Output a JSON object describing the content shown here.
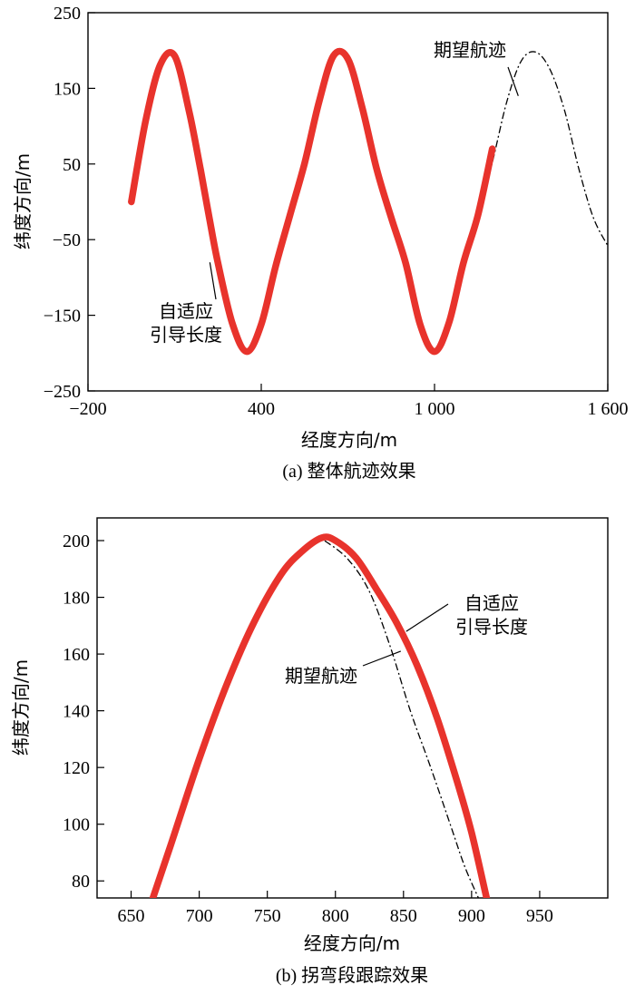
{
  "chart_data": [
    {
      "type": "line",
      "caption": "(a) 整体航迹效果",
      "xlabel": "经度方向/m",
      "ylabel": "纬度方向/m",
      "xlim": [
        -200,
        1600
      ],
      "ylim": [
        -250,
        250
      ],
      "x_ticks": [
        -200,
        400,
        1000,
        1600
      ],
      "x_tick_labels": [
        "−200",
        "400",
        "1 000",
        "1 600"
      ],
      "y_ticks": [
        -250,
        -150,
        -50,
        50,
        150,
        250
      ],
      "y_tick_labels": [
        "−250",
        "−150",
        "−50",
        "50",
        "150",
        "250"
      ],
      "series": [
        {
          "name": "期望航迹",
          "color": "#000000",
          "style": "dash-dot",
          "x": [
            -50,
            0,
            50,
            100,
            150,
            190,
            220,
            250,
            300,
            350,
            400,
            450,
            500,
            550,
            600,
            650,
            700,
            750,
            800,
            850,
            900,
            950,
            1000,
            1050,
            1100,
            1150,
            1200,
            1250,
            1300,
            1350,
            1400,
            1450,
            1500,
            1550,
            1600
          ],
          "y": [
            0,
            108,
            181,
            193,
            120,
            42,
            -21,
            -81,
            -161,
            -198,
            -162,
            -85,
            -17,
            51,
            132,
            193,
            189,
            124,
            43,
            -21,
            -81,
            -162,
            -198,
            -160,
            -81,
            -18,
            52,
            132,
            186,
            198,
            175,
            121,
            43,
            -21,
            -58
          ]
        },
        {
          "name": "自适应引导长度",
          "color": "#e8332c",
          "style": "solid",
          "x": [
            -50,
            0,
            50,
            100,
            150,
            190,
            220,
            250,
            300,
            350,
            400,
            450,
            500,
            550,
            600,
            650,
            700,
            750,
            800,
            850,
            900,
            950,
            1000,
            1050,
            1100,
            1150,
            1200
          ],
          "y": [
            0,
            108,
            181,
            193,
            120,
            42,
            -21,
            -81,
            -161,
            -198,
            -162,
            -85,
            -17,
            51,
            132,
            193,
            189,
            124,
            43,
            -21,
            -81,
            -162,
            -198,
            -160,
            -81,
            -18,
            70
          ]
        }
      ],
      "annotations": [
        {
          "text": "期望航迹",
          "target_x": 1290,
          "target_y": 140
        },
        {
          "text_lines": [
            "自适应",
            "引导长度"
          ],
          "target_x": 222,
          "target_y": -80
        }
      ]
    },
    {
      "type": "line",
      "caption": "(b) 拐弯段跟踪效果",
      "xlabel": "经度方向/m",
      "ylabel": "纬度方向/m",
      "xlim": [
        625,
        1000
      ],
      "ylim": [
        74,
        208
      ],
      "x_ticks": [
        650,
        700,
        750,
        800,
        850,
        900,
        950
      ],
      "x_tick_labels": [
        "650",
        "700",
        "750",
        "800",
        "850",
        "900",
        "950"
      ],
      "y_ticks": [
        80,
        100,
        120,
        140,
        160,
        180,
        200
      ],
      "y_tick_labels": [
        "80",
        "100",
        "120",
        "140",
        "160",
        "180",
        "200"
      ],
      "series": [
        {
          "name": "期望航迹",
          "color": "#000000",
          "style": "dash-dot",
          "x": [
            666,
            680,
            700,
            720,
            740,
            760,
            775,
            788,
            795,
            810,
            825,
            840,
            855,
            870,
            885,
            895,
            905
          ],
          "y": [
            74,
            94,
            123,
            149,
            171,
            188,
            196,
            200,
            199,
            193,
            182,
            163,
            140,
            120,
            99,
            85,
            74
          ]
        },
        {
          "name": "自适应引导长度",
          "color": "#e8332c",
          "style": "solid",
          "x": [
            666,
            680,
            700,
            720,
            740,
            760,
            775,
            790,
            800,
            815,
            830,
            845,
            860,
            875,
            890,
            900,
            911
          ],
          "y": [
            74,
            94,
            123,
            149,
            171,
            188,
            196,
            201,
            200,
            194,
            183,
            171,
            156,
            137,
            114,
            97,
            74
          ]
        }
      ],
      "annotations": [
        {
          "text": "期望航迹",
          "target_x": 848,
          "target_y": 161
        },
        {
          "text_lines": [
            "自适应",
            "引导长度"
          ],
          "target_x": 852,
          "target_y": 168
        }
      ]
    }
  ]
}
